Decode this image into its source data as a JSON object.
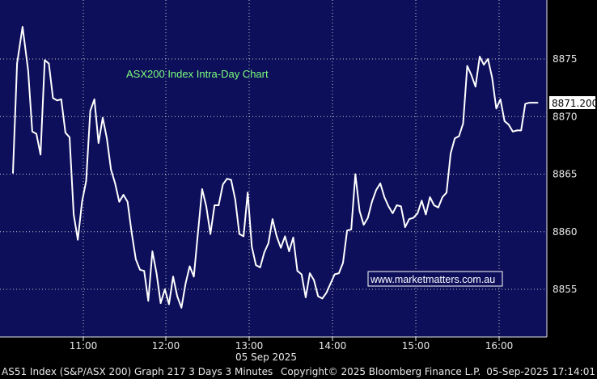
{
  "chart_data": {
    "type": "line",
    "title": "ASX200 Index Intra-Day Chart",
    "watermark": "www.marketmatters.com.au",
    "date_label": "05 Sep 2025",
    "last_value_label": "8871.200",
    "x_ticks": [
      "11:00",
      "12:00",
      "13:00",
      "14:00",
      "15:00",
      "16:00"
    ],
    "y_ticks": [
      "8855",
      "8860",
      "8865",
      "8870",
      "8875"
    ],
    "ylim": [
      8851,
      8880
    ],
    "xlim_minutes": [
      0,
      405
    ],
    "grid": true,
    "series": [
      {
        "values": [
          [
            0,
            8865.1
          ],
          [
            3,
            8874.6
          ],
          [
            7,
            8877.8
          ],
          [
            11,
            8874.0
          ],
          [
            14,
            8868.7
          ],
          [
            17,
            8868.5
          ],
          [
            20,
            8866.7
          ],
          [
            23,
            8874.9
          ],
          [
            26,
            8874.6
          ],
          [
            29,
            8871.6
          ],
          [
            32,
            8871.4
          ],
          [
            35,
            8871.5
          ],
          [
            38,
            8868.6
          ],
          [
            41,
            8868.2
          ],
          [
            44,
            8861.5
          ],
          [
            47,
            8859.3
          ],
          [
            50,
            8862.6
          ],
          [
            53,
            8864.4
          ],
          [
            56,
            8870.5
          ],
          [
            59,
            8871.5
          ],
          [
            62,
            8867.7
          ],
          [
            65,
            8869.9
          ],
          [
            68,
            8868.1
          ],
          [
            71,
            8865.4
          ],
          [
            74,
            8864.2
          ],
          [
            77,
            8862.6
          ],
          [
            80,
            8863.2
          ],
          [
            83,
            8862.6
          ],
          [
            86,
            8859.9
          ],
          [
            89,
            8857.6
          ],
          [
            92,
            8856.7
          ],
          [
            95,
            8856.6
          ],
          [
            98,
            8854.0
          ],
          [
            101,
            8858.3
          ],
          [
            104,
            8856.4
          ],
          [
            107,
            8853.8
          ],
          [
            110,
            8855.0
          ],
          [
            113,
            8853.7
          ],
          [
            116,
            8856.1
          ],
          [
            119,
            8854.4
          ],
          [
            122,
            8853.4
          ],
          [
            125,
            8855.5
          ],
          [
            128,
            8857.0
          ],
          [
            131,
            8856.1
          ],
          [
            134,
            8859.9
          ],
          [
            137,
            8863.7
          ],
          [
            140,
            8862.2
          ],
          [
            143,
            8859.8
          ],
          [
            146,
            8862.3
          ],
          [
            149,
            8862.3
          ],
          [
            152,
            8864.1
          ],
          [
            155,
            8864.6
          ],
          [
            158,
            8864.5
          ],
          [
            161,
            8862.8
          ],
          [
            164,
            8859.8
          ],
          [
            167,
            8859.6
          ],
          [
            170,
            8863.4
          ],
          [
            173,
            8858.7
          ],
          [
            176,
            8857.1
          ],
          [
            179,
            8856.9
          ],
          [
            182,
            8858.2
          ],
          [
            185,
            8859.0
          ],
          [
            188,
            8861.1
          ],
          [
            191,
            8859.6
          ],
          [
            194,
            8858.6
          ],
          [
            197,
            8859.6
          ],
          [
            200,
            8858.3
          ],
          [
            203,
            8859.5
          ],
          [
            206,
            8856.6
          ],
          [
            209,
            8856.3
          ],
          [
            212,
            8854.3
          ],
          [
            215,
            8856.4
          ],
          [
            218,
            8855.8
          ],
          [
            221,
            8854.4
          ],
          [
            224,
            8854.2
          ],
          [
            227,
            8854.7
          ],
          [
            230,
            8855.5
          ],
          [
            233,
            8856.3
          ],
          [
            236,
            8856.4
          ],
          [
            239,
            8857.3
          ],
          [
            242,
            8860.1
          ],
          [
            245,
            8860.2
          ],
          [
            248,
            8865.0
          ],
          [
            251,
            8861.8
          ],
          [
            254,
            8860.6
          ],
          [
            257,
            8861.2
          ],
          [
            260,
            8862.6
          ],
          [
            263,
            8863.6
          ],
          [
            266,
            8864.2
          ],
          [
            269,
            8863.0
          ],
          [
            272,
            8862.2
          ],
          [
            275,
            8861.6
          ],
          [
            278,
            8862.3
          ],
          [
            281,
            8862.2
          ],
          [
            284,
            8860.4
          ],
          [
            287,
            8861.1
          ],
          [
            290,
            8861.2
          ],
          [
            293,
            8861.6
          ],
          [
            296,
            8862.7
          ],
          [
            299,
            8861.5
          ],
          [
            302,
            8863.0
          ],
          [
            305,
            8862.3
          ],
          [
            308,
            8862.1
          ],
          [
            311,
            8863.0
          ],
          [
            314,
            8863.4
          ],
          [
            317,
            8866.8
          ],
          [
            320,
            8868.1
          ],
          [
            323,
            8868.3
          ],
          [
            326,
            8869.4
          ],
          [
            329,
            8874.4
          ],
          [
            332,
            8873.6
          ],
          [
            335,
            8872.6
          ],
          [
            338,
            8875.2
          ],
          [
            341,
            8874.5
          ],
          [
            344,
            8875.0
          ],
          [
            347,
            8873.4
          ],
          [
            350,
            8870.7
          ],
          [
            353,
            8871.5
          ],
          [
            356,
            8869.6
          ],
          [
            359,
            8869.3
          ],
          [
            362,
            8868.7
          ],
          [
            365,
            8868.8
          ],
          [
            368,
            8868.8
          ],
          [
            371,
            8871.1
          ],
          [
            374,
            8871.2
          ],
          [
            377,
            8871.2
          ],
          [
            380,
            8871.2
          ]
        ]
      }
    ]
  },
  "footer": {
    "left": "AS51 Index (S&P/ASX 200) Graph 217 3 Days 3 Minutes",
    "copyright": "Copyright© 2025 Bloomberg Finance L.P.",
    "timestamp": "05-Sep-2025 17:14:01"
  },
  "colors": {
    "background": "#000",
    "plot_background": "#0d0f5a",
    "line": "#ffffff",
    "grid": "#c8c8c8",
    "title": "#7cff7c"
  }
}
